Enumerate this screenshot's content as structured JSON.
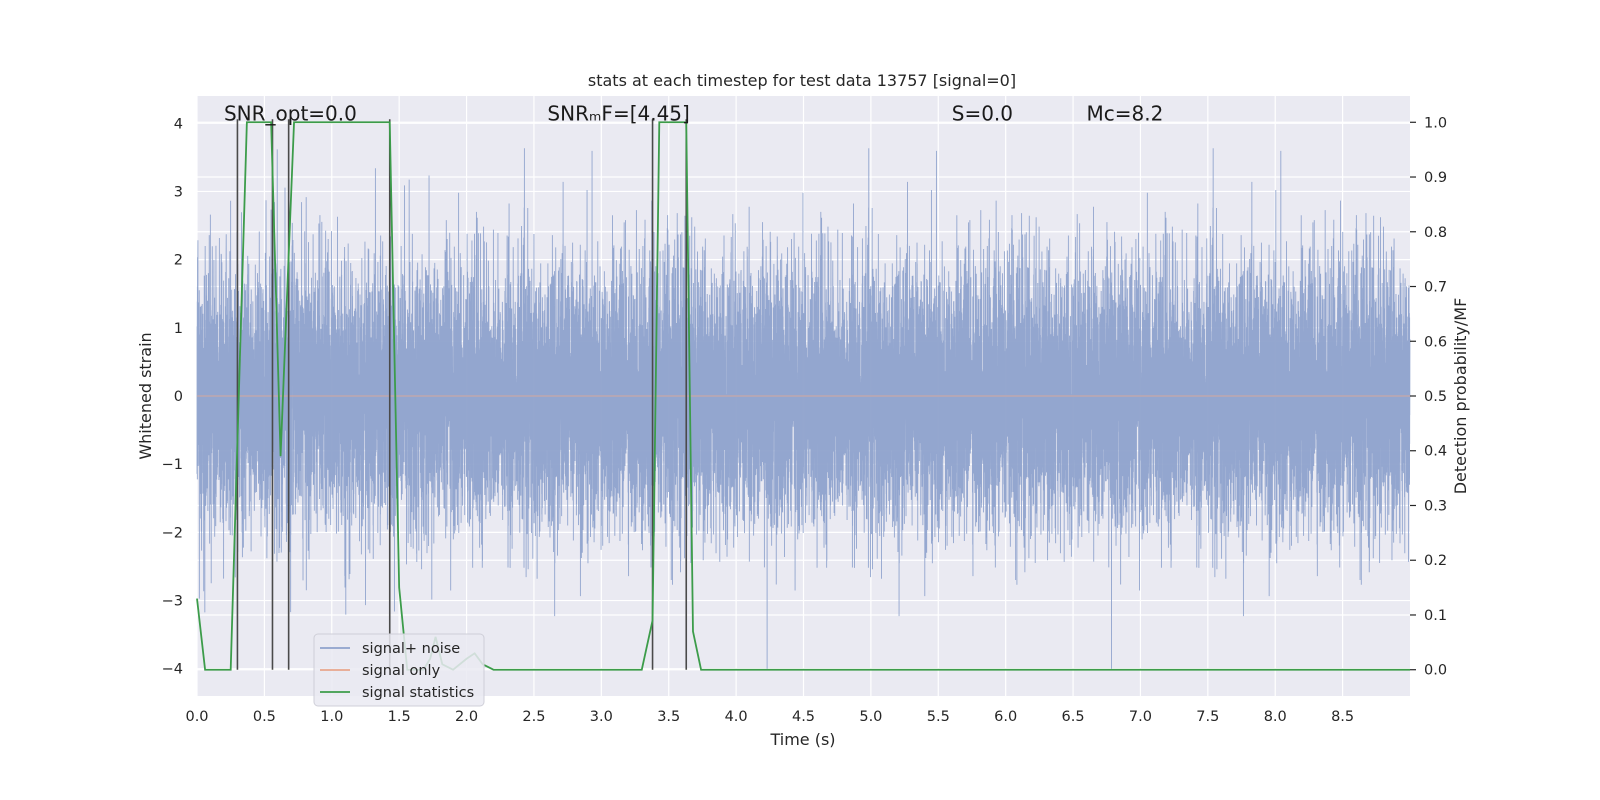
{
  "chart_data": {
    "type": "line",
    "title": "stats at each timestep for test data 13757 [signal=0]",
    "xlabel": "Time (s)",
    "ylabel": "Whitened strain",
    "y2label": "Detection probability/MF",
    "xlim": [
      0.0,
      9.0
    ],
    "ylim": [
      -4.4,
      4.4
    ],
    "y2lim": [
      -0.048,
      1.048
    ],
    "xticks": [
      0.0,
      0.5,
      1.0,
      1.5,
      2.0,
      2.5,
      3.0,
      3.5,
      4.0,
      4.5,
      5.0,
      5.5,
      6.0,
      6.5,
      7.0,
      7.5,
      8.0,
      8.5
    ],
    "xtick_labels": [
      "0.0",
      "0.5",
      "1.0",
      "1.5",
      "2.0",
      "2.5",
      "3.0",
      "3.5",
      "4.0",
      "4.5",
      "5.0",
      "5.5",
      "6.0",
      "6.5",
      "7.0",
      "7.5",
      "8.0",
      "8.5"
    ],
    "yticks": [
      4,
      3,
      2,
      1,
      0,
      -1,
      -2,
      -3,
      -4
    ],
    "ytick_labels": [
      "4",
      "3",
      "2",
      "1",
      "0",
      "−1",
      "−2",
      "−3",
      "−4"
    ],
    "y2ticks": [
      1.0,
      0.9,
      0.8,
      0.7,
      0.6,
      0.5,
      0.4,
      0.3,
      0.2,
      0.1,
      0.0
    ],
    "y2tick_labels": [
      "1.0",
      "0.9",
      "0.8",
      "0.7",
      "0.6",
      "0.5",
      "0.4",
      "0.3",
      "0.2",
      "0.1",
      "0.0"
    ],
    "grid": true,
    "legend_position": "lower-left",
    "annotations": [
      {
        "id": "snr-opt",
        "text": "SNR_opt=0.0",
        "x": 0.2,
        "y": 4.1
      },
      {
        "id": "snr-mf",
        "text": "SNRₘF=[4.45]",
        "x": 2.6,
        "y": 4.1
      },
      {
        "id": "s",
        "text": "S=0.0",
        "x": 5.6,
        "y": 4.1
      },
      {
        "id": "mc",
        "text": "Mᴄ=8.2",
        "x": 6.6,
        "y": 4.1
      }
    ],
    "vlines": [
      0.3,
      0.56,
      0.68,
      1.43,
      3.38,
      3.63
    ],
    "series": [
      {
        "name": "signal+ noise",
        "color": "#8ea2cc",
        "style": "noise",
        "sample_rate": 2048,
        "envelope_typical": 1.6,
        "envelope_peak": 4.0
      },
      {
        "name": "signal only",
        "color": "#e8a68c",
        "style": "flat",
        "values_y": [
          [
            0.0,
            0.0
          ],
          [
            9.0,
            0.0
          ]
        ]
      },
      {
        "name": "signal statistics",
        "color": "#3c9c4a",
        "axis": "right",
        "points": [
          [
            0.0,
            0.13
          ],
          [
            0.06,
            0.0
          ],
          [
            0.25,
            0.0
          ],
          [
            0.37,
            1.0
          ],
          [
            0.55,
            1.0
          ],
          [
            0.62,
            0.39
          ],
          [
            0.72,
            1.0
          ],
          [
            1.43,
            1.0
          ],
          [
            1.5,
            0.15
          ],
          [
            1.56,
            0.0
          ],
          [
            1.68,
            0.0
          ],
          [
            1.73,
            0.02
          ],
          [
            1.77,
            0.06
          ],
          [
            1.82,
            0.01
          ],
          [
            1.9,
            0.0
          ],
          [
            2.0,
            0.02
          ],
          [
            2.06,
            0.03
          ],
          [
            2.12,
            0.01
          ],
          [
            2.2,
            0.0
          ],
          [
            3.3,
            0.0
          ],
          [
            3.38,
            0.09
          ],
          [
            3.43,
            1.0
          ],
          [
            3.63,
            1.0
          ],
          [
            3.68,
            0.07
          ],
          [
            3.74,
            0.0
          ],
          [
            9.0,
            0.0
          ]
        ]
      }
    ]
  }
}
